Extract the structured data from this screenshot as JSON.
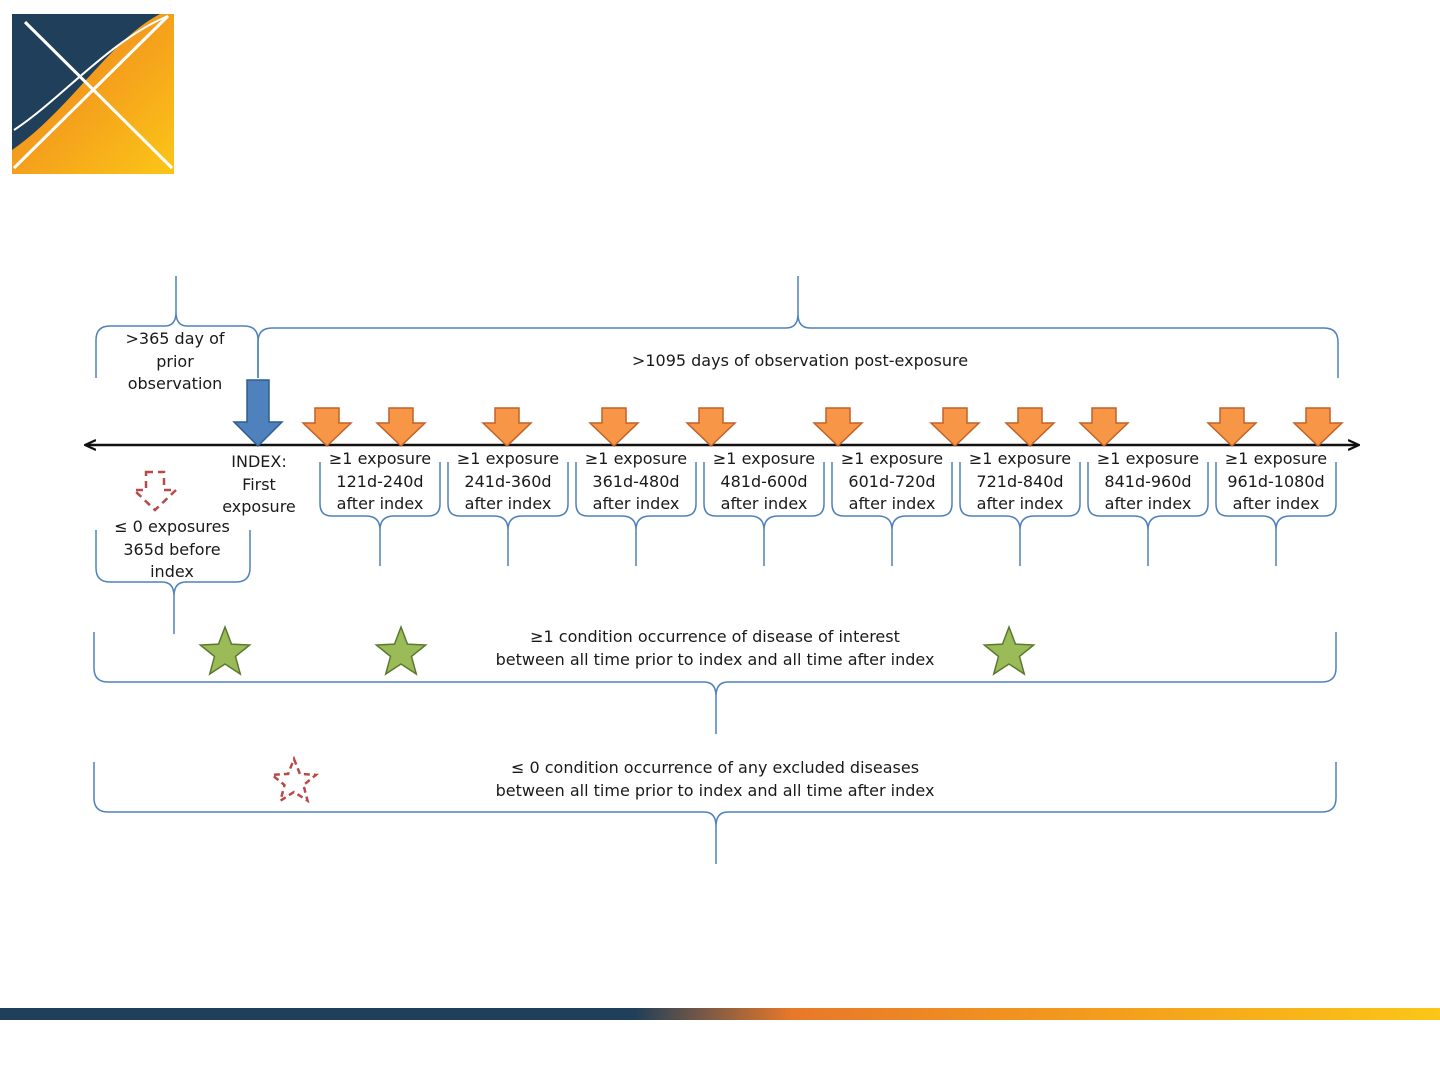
{
  "brand": {
    "logo": "ohdsi-x-logo",
    "colors": {
      "navy": "#1f3f5a",
      "orange": "#f08a24",
      "yellow": "#fbc617"
    }
  },
  "timeline": {
    "index_label": [
      "INDEX:",
      "First",
      "exposure"
    ],
    "prior_observation": [
      "&gt;365 day of",
      "prior",
      "observation"
    ],
    "post_observation": ">1095 days of observation post-exposure",
    "prior_exposure_exclusion": [
      "≤ 0 exposures",
      "365d before",
      "index"
    ],
    "windows": [
      {
        "l1": "≥1 exposure",
        "l2": "121d-240d",
        "l3": "after index"
      },
      {
        "l1": "≥1 exposure",
        "l2": "241d-360d",
        "l3": "after index"
      },
      {
        "l1": "≥1 exposure",
        "l2": "361d-480d",
        "l3": "after index"
      },
      {
        "l1": "≥1 exposure",
        "l2": "481d-600d",
        "l3": "after index"
      },
      {
        "l1": "≥1 exposure",
        "l2": "601d-720d",
        "l3": "after index"
      },
      {
        "l1": "≥1 exposure",
        "l2": "721d-840d",
        "l3": "after index"
      },
      {
        "l1": "≥1 exposure",
        "l2": "841d-960d",
        "l3": "after index"
      },
      {
        "l1": "≥1 exposure",
        "l2": "961d-1080d",
        "l3": "after index"
      }
    ]
  },
  "criteria": {
    "condition_interest": {
      "line1": "≥1 condition occurrence of disease of interest",
      "line2": "between all time prior to index and all time after index"
    },
    "condition_excluded": {
      "line1": "≤ 0 condition occurrence of any excluded diseases",
      "line2": "between all time prior to index and all time after index"
    }
  },
  "icons": {
    "exposure_arrow": "orange-down-arrow-icon",
    "index_arrow": "blue-down-arrow-icon",
    "exposure_excluded": "dashed-down-arrow-icon",
    "condition_present": "green-star-icon",
    "condition_excluded": "dashed-star-icon"
  }
}
